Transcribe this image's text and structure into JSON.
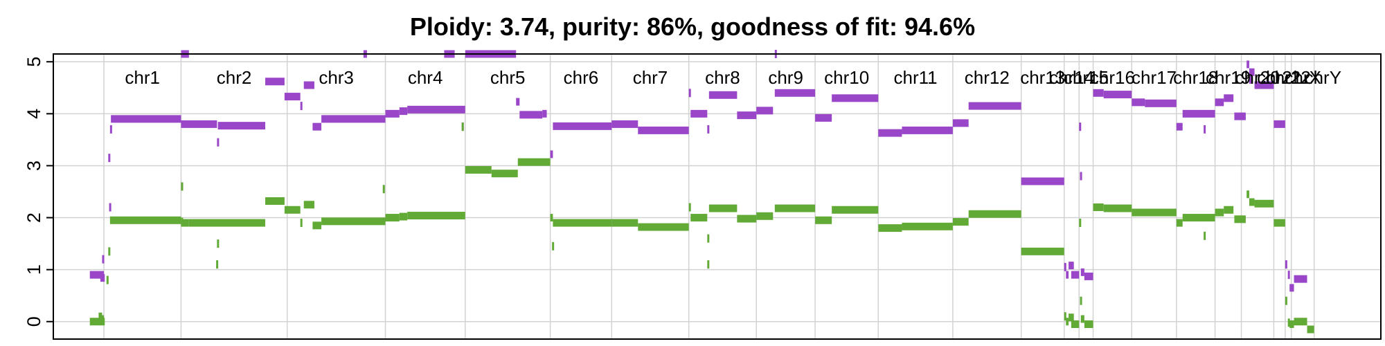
{
  "chart_data": {
    "type": "scatter",
    "title": "Ploidy: 3.74, purity: 86%, goodness of fit: 94.6%",
    "xlabel": "",
    "ylabel": "",
    "ylim": [
      -0.15,
      5.15
    ],
    "y_ticks": [
      "0",
      "1",
      "2",
      "3",
      "4",
      "5"
    ],
    "grid": true,
    "colors": {
      "major": "#9a46c8",
      "minor": "#62aa36",
      "grid": "#d2d2d2"
    },
    "chromosomes": [
      {
        "name": "chr1",
        "start": 0,
        "end": 88
      },
      {
        "name": "chr2",
        "start": 88,
        "end": 209
      },
      {
        "name": "chr3",
        "start": 209,
        "end": 321
      },
      {
        "name": "chr4",
        "start": 321,
        "end": 412
      },
      {
        "name": "chr5",
        "start": 412,
        "end": 509
      },
      {
        "name": "chr6",
        "start": 509,
        "end": 579
      },
      {
        "name": "chr7",
        "start": 579,
        "end": 667
      },
      {
        "name": "chr8",
        "start": 667,
        "end": 744
      },
      {
        "name": "chr9",
        "start": 744,
        "end": 811
      },
      {
        "name": "chr10",
        "start": 811,
        "end": 883
      },
      {
        "name": "chr11",
        "start": 883,
        "end": 968
      },
      {
        "name": "chr12",
        "start": 968,
        "end": 1046
      },
      {
        "name": "chr13",
        "start": 1046,
        "end": 1095
      },
      {
        "name": "chr14",
        "start": 1095,
        "end": 1112
      },
      {
        "name": "chr15",
        "start": 1112,
        "end": 1128
      },
      {
        "name": "chr16",
        "start": 1128,
        "end": 1172
      },
      {
        "name": "chr17",
        "start": 1172,
        "end": 1223
      },
      {
        "name": "chr18",
        "start": 1223,
        "end": 1267
      },
      {
        "name": "chr19",
        "start": 1267,
        "end": 1297
      },
      {
        "name": "chr20",
        "start": 1297,
        "end": 1334
      },
      {
        "name": "chr21",
        "start": 1334,
        "end": 1347
      },
      {
        "name": "chr22",
        "start": 1347,
        "end": 1354
      },
      {
        "name": "chrX",
        "start": 1354,
        "end": 1380
      },
      {
        "name": "chrY",
        "start": 1380,
        "end": 1400
      }
    ],
    "series": [
      {
        "name": "",
        "role": "major",
        "segments": [
          [
            -16,
            0,
            0.9
          ],
          [
            -4,
            1,
            0.84
          ],
          [
            -2,
            0,
            1.2
          ],
          [
            5,
            6,
            3.15
          ],
          [
            6,
            7,
            2.2
          ],
          [
            7,
            8,
            3.7
          ],
          [
            8,
            88,
            3.9
          ],
          [
            88,
            97,
            5.15
          ],
          [
            88,
            89,
            2.6
          ],
          [
            88,
            129,
            3.8
          ],
          [
            129,
            130,
            3.45
          ],
          [
            130,
            184,
            3.77
          ],
          [
            184,
            206,
            4.62
          ],
          [
            206,
            224,
            4.33
          ],
          [
            224,
            226,
            4.15
          ],
          [
            228,
            240,
            4.55
          ],
          [
            238,
            248,
            3.75
          ],
          [
            248,
            321,
            3.9
          ],
          [
            296,
            300,
            5.15
          ],
          [
            321,
            337,
            4.0
          ],
          [
            337,
            346,
            4.05
          ],
          [
            346,
            412,
            4.08
          ],
          [
            388,
            400,
            5.15
          ],
          [
            412,
            470,
            5.15
          ],
          [
            408,
            410,
            3.75
          ],
          [
            470,
            474,
            4.23
          ],
          [
            474,
            500,
            3.98
          ],
          [
            500,
            505,
            4.0
          ],
          [
            509,
            512,
            3.22
          ],
          [
            512,
            579,
            3.76
          ],
          [
            579,
            609,
            3.8
          ],
          [
            609,
            667,
            3.68
          ],
          [
            667,
            669,
            4.4
          ],
          [
            669,
            688,
            4.0
          ],
          [
            688,
            689,
            3.7
          ],
          [
            690,
            722,
            4.36
          ],
          [
            722,
            744,
            3.97
          ],
          [
            744,
            763,
            4.06
          ],
          [
            765,
            766,
            5.15
          ],
          [
            765,
            811,
            4.4
          ],
          [
            811,
            830,
            3.92
          ],
          [
            830,
            883,
            4.3
          ],
          [
            883,
            910,
            3.63
          ],
          [
            910,
            968,
            3.68
          ],
          [
            968,
            986,
            3.82
          ],
          [
            986,
            1046,
            4.15
          ],
          [
            1046,
            1095,
            2.7
          ],
          [
            1095,
            1097,
            1.05
          ],
          [
            1097,
            1100,
            0.9
          ],
          [
            1100,
            1106,
            1.08
          ],
          [
            1103,
            1112,
            0.9
          ],
          [
            1112,
            1114,
            3.75
          ],
          [
            1113,
            1115,
            2.8
          ],
          [
            1114,
            1118,
            0.95
          ],
          [
            1118,
            1128,
            0.87
          ],
          [
            1128,
            1140,
            4.4
          ],
          [
            1140,
            1172,
            4.37
          ],
          [
            1172,
            1187,
            4.22
          ],
          [
            1187,
            1223,
            4.2
          ],
          [
            1223,
            1230,
            3.75
          ],
          [
            1230,
            1267,
            4.0
          ],
          [
            1254,
            1256,
            3.7
          ],
          [
            1267,
            1277,
            4.22
          ],
          [
            1277,
            1288,
            4.3
          ],
          [
            1289,
            1302,
            3.95
          ],
          [
            1303,
            1306,
            4.95
          ],
          [
            1306,
            1310,
            4.65
          ],
          [
            1306,
            1312,
            4.8
          ],
          [
            1312,
            1334,
            4.55
          ],
          [
            1334,
            1347,
            3.8
          ],
          [
            1347,
            1349,
            1.1
          ],
          [
            1350,
            1352,
            0.9
          ],
          [
            1352,
            1357,
            0.65
          ],
          [
            1357,
            1372,
            0.82
          ]
        ]
      },
      {
        "name": "",
        "role": "minor",
        "segments": [
          [
            -16,
            1,
            0.0
          ],
          [
            -6,
            -2,
            0.1
          ],
          [
            -5,
            0,
            0.05
          ],
          [
            3,
            4,
            0.8
          ],
          [
            5,
            7,
            1.35
          ],
          [
            7,
            88,
            1.95
          ],
          [
            88,
            89,
            2.6
          ],
          [
            88,
            97,
            1.9
          ],
          [
            88,
            89,
            1.92
          ],
          [
            97,
            184,
            1.9
          ],
          [
            128,
            130,
            1.1
          ],
          [
            129,
            130,
            1.5
          ],
          [
            184,
            206,
            2.32
          ],
          [
            206,
            224,
            2.15
          ],
          [
            224,
            226,
            1.9
          ],
          [
            228,
            240,
            2.25
          ],
          [
            238,
            248,
            1.85
          ],
          [
            248,
            321,
            1.93
          ],
          [
            318,
            320,
            2.55
          ],
          [
            321,
            337,
            2.0
          ],
          [
            337,
            346,
            2.02
          ],
          [
            346,
            412,
            2.04
          ],
          [
            408,
            410,
            3.75
          ],
          [
            412,
            442,
            2.92
          ],
          [
            442,
            472,
            2.85
          ],
          [
            472,
            509,
            3.07
          ],
          [
            509,
            512,
            2.0
          ],
          [
            511,
            513,
            1.45
          ],
          [
            512,
            579,
            1.9
          ],
          [
            579,
            609,
            1.9
          ],
          [
            609,
            667,
            1.82
          ],
          [
            667,
            669,
            2.2
          ],
          [
            669,
            688,
            2.0
          ],
          [
            688,
            689,
            1.1
          ],
          [
            688,
            689,
            1.6
          ],
          [
            690,
            722,
            2.18
          ],
          [
            722,
            744,
            1.98
          ],
          [
            744,
            763,
            2.03
          ],
          [
            765,
            811,
            2.18
          ],
          [
            811,
            830,
            1.95
          ],
          [
            830,
            883,
            2.15
          ],
          [
            883,
            910,
            1.8
          ],
          [
            910,
            968,
            1.83
          ],
          [
            968,
            986,
            1.92
          ],
          [
            986,
            1046,
            2.07
          ],
          [
            1046,
            1095,
            1.35
          ],
          [
            1095,
            1097,
            0.1
          ],
          [
            1097,
            1100,
            0.0
          ],
          [
            1100,
            1106,
            0.08
          ],
          [
            1103,
            1112,
            -0.05
          ],
          [
            1112,
            1114,
            1.9
          ],
          [
            1113,
            1115,
            0.4
          ],
          [
            1114,
            1118,
            0.05
          ],
          [
            1118,
            1128,
            -0.05
          ],
          [
            1128,
            1140,
            2.2
          ],
          [
            1140,
            1172,
            2.18
          ],
          [
            1172,
            1223,
            2.1
          ],
          [
            1223,
            1230,
            1.9
          ],
          [
            1230,
            1267,
            2.0
          ],
          [
            1254,
            1256,
            1.65
          ],
          [
            1267,
            1277,
            2.1
          ],
          [
            1277,
            1288,
            2.15
          ],
          [
            1289,
            1302,
            1.97
          ],
          [
            1303,
            1306,
            2.45
          ],
          [
            1306,
            1312,
            2.3
          ],
          [
            1312,
            1334,
            2.27
          ],
          [
            1334,
            1347,
            1.9
          ],
          [
            1347,
            1349,
            0.4
          ],
          [
            1350,
            1352,
            -0.02
          ],
          [
            1352,
            1357,
            -0.05
          ],
          [
            1357,
            1372,
            0.0
          ],
          [
            1372,
            1380,
            -0.15
          ]
        ]
      }
    ]
  }
}
